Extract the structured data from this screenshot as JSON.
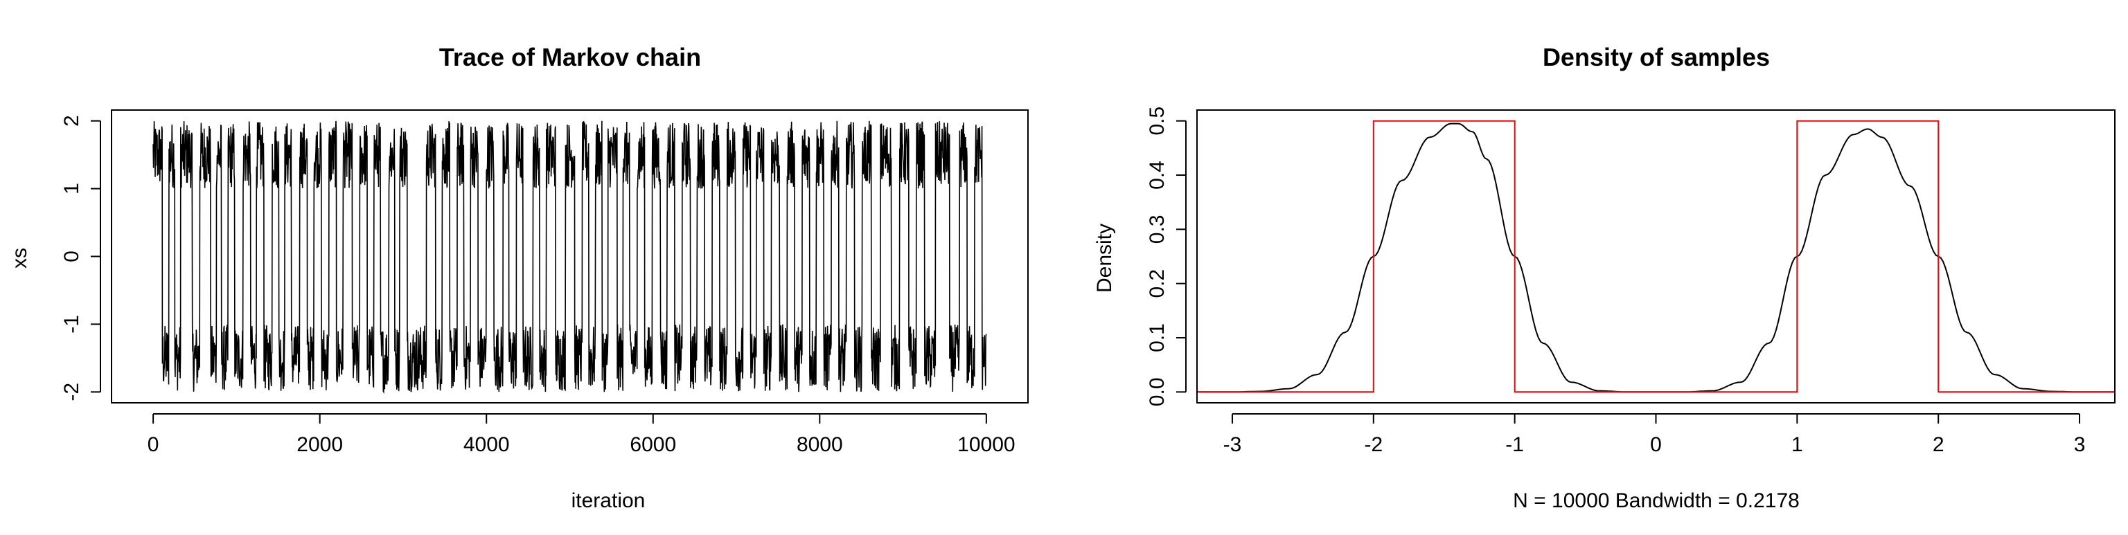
{
  "chart_data": [
    {
      "type": "line",
      "title": "Trace of Markov chain",
      "xlabel": "iteration",
      "ylabel": "xs",
      "xlim": [
        0,
        10000
      ],
      "ylim": [
        -2,
        2
      ],
      "xticks": [
        0,
        2000,
        4000,
        6000,
        8000,
        10000
      ],
      "yticks": [
        -2,
        -1,
        0,
        1,
        2
      ],
      "xtick_labels": [
        "0",
        "2000",
        "4000",
        "6000",
        "8000",
        "10000"
      ],
      "ytick_labels": [
        "-2",
        "-1",
        "0",
        "1",
        "2"
      ],
      "n_iterations": 10000,
      "series": [
        {
          "description": "Metropolis chain alternating between modes [-2,-1] and [1,2]",
          "color": "#000000",
          "mode_switch_iterations": [
            0,
            110,
            190,
            260,
            330,
            470,
            560,
            690,
            760,
            820,
            900,
            980,
            1080,
            1170,
            1240,
            1330,
            1430,
            1510,
            1580,
            1660,
            1760,
            1850,
            1930,
            2020,
            2110,
            2200,
            2280,
            2390,
            2480,
            2570,
            2650,
            2730,
            2830,
            2900,
            2960,
            3050,
            3280,
            3390,
            3470,
            3560,
            3650,
            3730,
            3810,
            3900,
            4000,
            4090,
            4200,
            4270,
            4360,
            4440,
            4560,
            4640,
            4720,
            4830,
            4950,
            5060,
            5150,
            5230,
            5310,
            5390,
            5460,
            5570,
            5640,
            5720,
            5810,
            5900,
            5990,
            6090,
            6170,
            6260,
            6350,
            6450,
            6530,
            6620,
            6710,
            6800,
            6890,
            6990,
            7080,
            7170,
            7240,
            7330,
            7420,
            7520,
            7610,
            7700,
            7790,
            7880,
            7960,
            8050,
            8140,
            8230,
            8320,
            8420,
            8510,
            8620,
            8730,
            8860,
            8960,
            9070,
            9160,
            9260,
            9390,
            9560,
            9680,
            9770,
            9860,
            9950,
            10000
          ],
          "mode_sequence_start": "upper"
        }
      ]
    },
    {
      "type": "line",
      "title": "Density of samples",
      "xlabel": "N = 10000   Bandwidth = 0.2178",
      "ylabel": "Density",
      "xlim": [
        -3.25,
        3.25
      ],
      "ylim": [
        0,
        0.5
      ],
      "xticks": [
        -3,
        -2,
        -1,
        0,
        1,
        2,
        3
      ],
      "yticks": [
        0.0,
        0.1,
        0.2,
        0.3,
        0.4,
        0.5
      ],
      "xtick_labels": [
        "-3",
        "-2",
        "-1",
        "0",
        "1",
        "2",
        "3"
      ],
      "ytick_labels": [
        "0.0",
        "0.1",
        "0.2",
        "0.3",
        "0.4",
        "0.5"
      ],
      "series": [
        {
          "color": "#000000",
          "x": [
            -3.25,
            -3.0,
            -2.8,
            -2.6,
            -2.4,
            -2.2,
            -2.0,
            -1.8,
            -1.6,
            -1.45,
            -1.4,
            -1.3,
            -1.2,
            -1.0,
            -0.8,
            -0.6,
            -0.4,
            -0.2,
            0.0,
            0.2,
            0.4,
            0.6,
            0.8,
            1.0,
            1.2,
            1.4,
            1.5,
            1.6,
            1.8,
            2.0,
            2.2,
            2.4,
            2.6,
            2.8,
            3.0,
            3.25
          ],
          "y": [
            0.0,
            0.0,
            0.001,
            0.006,
            0.032,
            0.11,
            0.25,
            0.39,
            0.47,
            0.495,
            0.495,
            0.48,
            0.43,
            0.25,
            0.09,
            0.018,
            0.002,
            0.0,
            0.0,
            0.0,
            0.002,
            0.018,
            0.09,
            0.25,
            0.4,
            0.475,
            0.485,
            0.47,
            0.38,
            0.25,
            0.11,
            0.032,
            0.006,
            0.001,
            0.0,
            0.0
          ]
        },
        {
          "color": "#ff0000",
          "x": [
            -3.25,
            -2,
            -2,
            -1,
            -1,
            1,
            1,
            2,
            2,
            3.25
          ],
          "y": [
            0,
            0,
            0.5,
            0.5,
            0,
            0,
            0.5,
            0.5,
            0,
            0
          ]
        }
      ]
    }
  ]
}
